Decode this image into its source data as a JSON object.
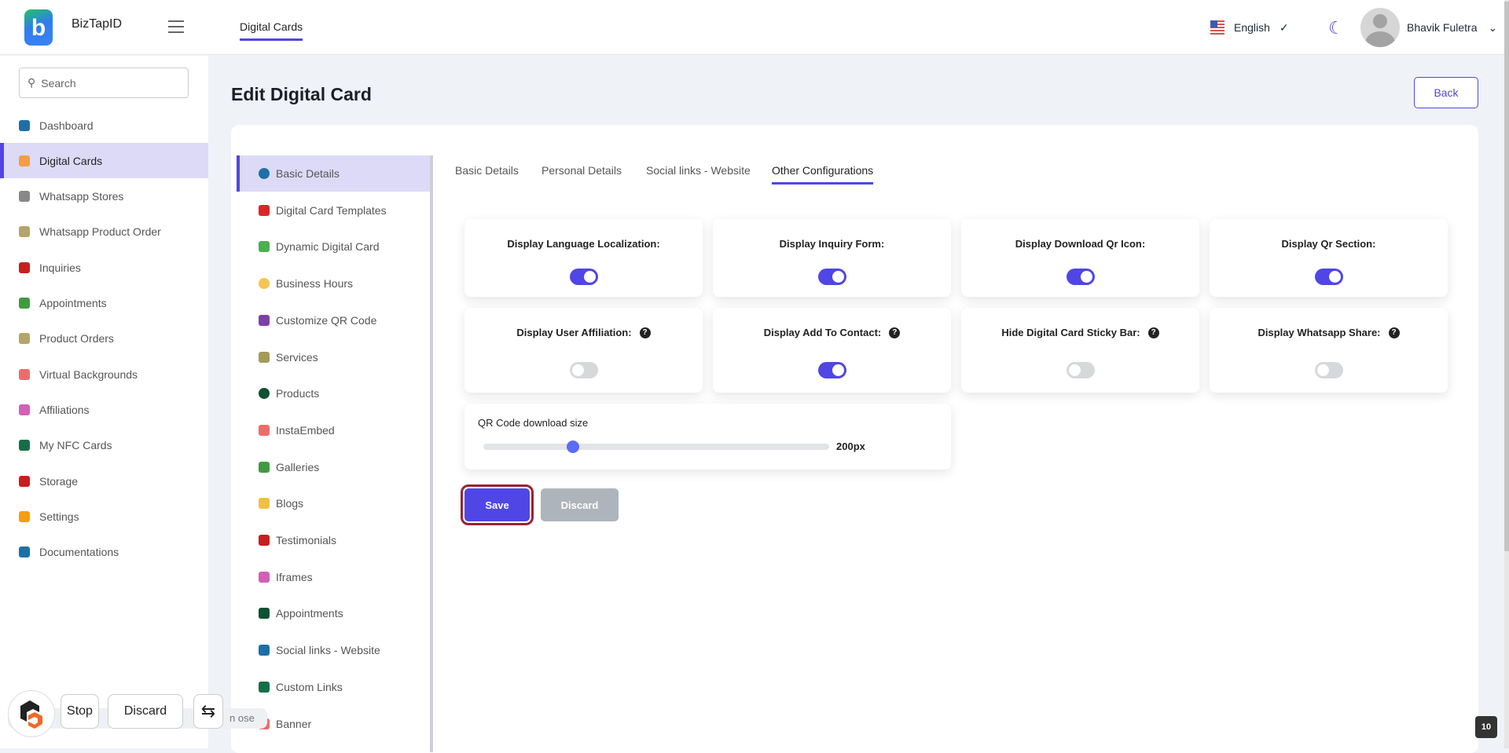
{
  "app": {
    "brand": "BizTapID",
    "header_tab": "Digital Cards",
    "language": "English",
    "user_name": "Bhavik Fuletra",
    "accent": "#4f46e5"
  },
  "sidebar": {
    "search_placeholder": "Search",
    "items": [
      {
        "label": "Dashboard",
        "icon": "pie-chart-icon",
        "color": "#1e6fa8"
      },
      {
        "label": "Digital Cards",
        "icon": "id-card-icon",
        "color": "#f59e42",
        "active": true
      },
      {
        "label": "Whatsapp Stores",
        "icon": "whatsapp-icon",
        "color": "#888"
      },
      {
        "label": "Whatsapp Product Order",
        "icon": "money-icon",
        "color": "#b5a56a"
      },
      {
        "label": "Inquiries",
        "icon": "info-icon",
        "color": "#c81e1e"
      },
      {
        "label": "Appointments",
        "icon": "calendar-icon",
        "color": "#3f9b3f"
      },
      {
        "label": "Product Orders",
        "icon": "money-icon",
        "color": "#b5a56a"
      },
      {
        "label": "Virtual Backgrounds",
        "icon": "badge-icon",
        "color": "#ef6b6b"
      },
      {
        "label": "Affiliations",
        "icon": "coins-icon",
        "color": "#d35fb7"
      },
      {
        "label": "My NFC Cards",
        "icon": "id-card-icon",
        "color": "#166e48"
      },
      {
        "label": "Storage",
        "icon": "memory-icon",
        "color": "#c81e1e"
      },
      {
        "label": "Settings",
        "icon": "gear-icon",
        "color": "#f59e0b"
      },
      {
        "label": "Documentations",
        "icon": "book-icon",
        "color": "#1e6fa8"
      }
    ]
  },
  "page": {
    "title": "Edit Digital Card",
    "back_label": "Back"
  },
  "inner_nav": [
    {
      "label": "Basic Details",
      "icon": "question-icon",
      "color": "#1e6fa8",
      "active": true
    },
    {
      "label": "Digital Card Templates",
      "icon": "template-icon",
      "color": "#dc2626"
    },
    {
      "label": "Dynamic Digital Card",
      "icon": "dynamic-card-icon",
      "color": "#4caf50"
    },
    {
      "label": "Business Hours",
      "icon": "clock-icon",
      "color": "#f6c453"
    },
    {
      "label": "Customize QR Code",
      "icon": "qr-code-icon",
      "color": "#7e3fa8"
    },
    {
      "label": "Services",
      "icon": "wrench-icon",
      "color": "#a39a5b"
    },
    {
      "label": "Products",
      "icon": "product-icon",
      "color": "#0f5132"
    },
    {
      "label": "InstaEmbed",
      "icon": "clipboard-icon",
      "color": "#ef6b6b"
    },
    {
      "label": "Galleries",
      "icon": "image-icon",
      "color": "#3f9b3f"
    },
    {
      "label": "Blogs",
      "icon": "rss-icon",
      "color": "#f0c040"
    },
    {
      "label": "Testimonials",
      "icon": "comment-icon",
      "color": "#c81e1e"
    },
    {
      "label": "Iframes",
      "icon": "crop-icon",
      "color": "#d35fb7"
    },
    {
      "label": "Appointments",
      "icon": "calendar-check-icon",
      "color": "#0f5132"
    },
    {
      "label": "Social links - Website",
      "icon": "globe-icon",
      "color": "#1e6fa8"
    },
    {
      "label": "Custom Links",
      "icon": "link-icon",
      "color": "#166e48"
    },
    {
      "label": "Banner",
      "icon": "banner-icon",
      "color": "#ef6b6b"
    }
  ],
  "tabs": [
    {
      "label": "Basic Details"
    },
    {
      "label": "Personal Details"
    },
    {
      "label": "Social links - Website"
    },
    {
      "label": "Other Configurations",
      "active": true
    }
  ],
  "configs": [
    {
      "label": "Display Language Localization:",
      "on": true,
      "help": false
    },
    {
      "label": "Display Inquiry Form:",
      "on": true,
      "help": false
    },
    {
      "label": "Display Download Qr Icon:",
      "on": true,
      "help": false
    },
    {
      "label": "Display Qr Section:",
      "on": true,
      "help": false
    },
    {
      "label": "Display User Affiliation:",
      "on": false,
      "help": true
    },
    {
      "label": "Display Add To Contact:",
      "on": true,
      "help": true
    },
    {
      "label": "Hide Digital Card Sticky Bar:",
      "on": false,
      "help": true
    },
    {
      "label": "Display Whatsapp Share:",
      "on": false,
      "help": true
    }
  ],
  "qr": {
    "label": "QR Code download size",
    "value_label": "200px",
    "slider_fraction": 0.26
  },
  "actions": {
    "save": "Save",
    "discard": "Discard"
  },
  "overlay": {
    "stop": "Stop",
    "discard": "Discard",
    "swap_icon": "⇆",
    "behind_text": "n   ose"
  },
  "badge": "10"
}
